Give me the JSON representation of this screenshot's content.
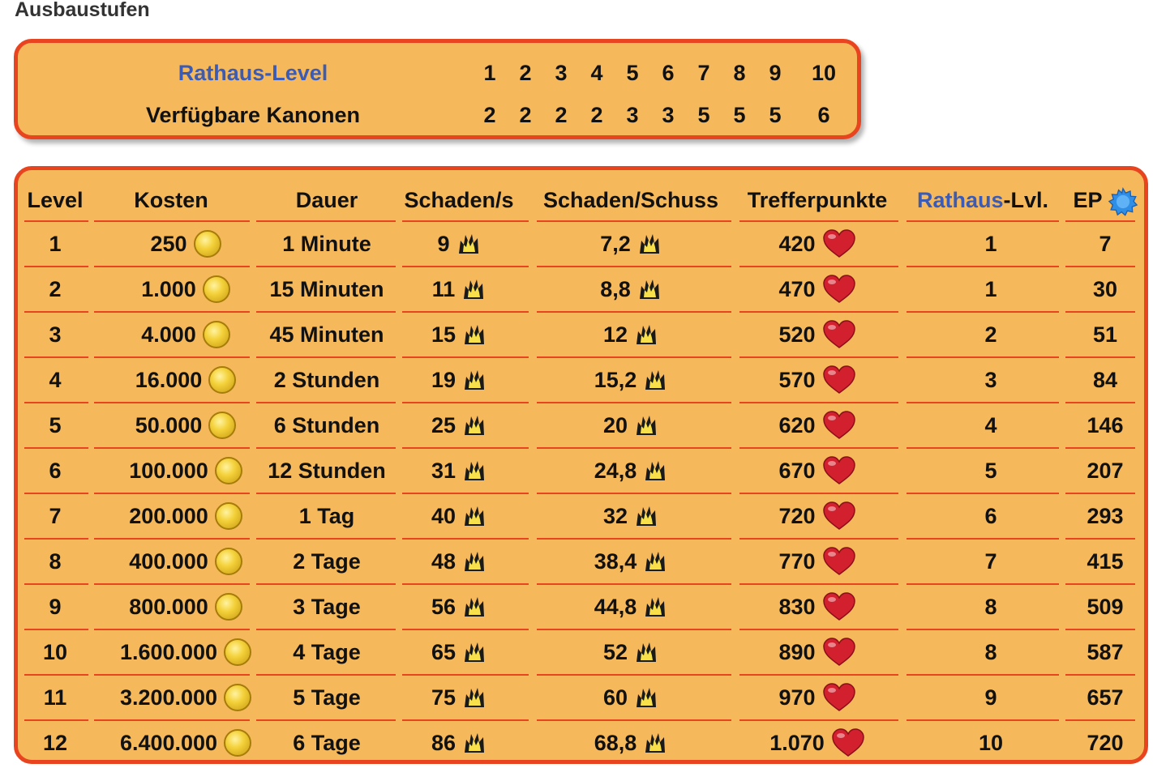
{
  "section_title": "Ausbaustufen",
  "summary": {
    "row1_label_a": "Rathaus-Level",
    "row1_values": [
      "1",
      "2",
      "3",
      "4",
      "5",
      "6",
      "7",
      "8",
      "9",
      "10"
    ],
    "row2_label": "Verfügbare Kanonen",
    "row2_values": [
      "2",
      "2",
      "2",
      "2",
      "3",
      "3",
      "5",
      "5",
      "5",
      "6"
    ]
  },
  "table": {
    "headers": {
      "level": "Level",
      "kosten": "Kosten",
      "dauer": "Dauer",
      "schaden_s": "Schaden/s",
      "schaden_schuss": "Schaden/Schuss",
      "trefferpunkte": "Trefferpunkte",
      "rathaus_a": "Rathaus",
      "rathaus_b": "-Lvl.",
      "ep": "EP"
    },
    "icons": {
      "kosten": "gold-coin-icon",
      "schaden": "damage-flame-icon",
      "trefferpunkte": "heart-icon",
      "ep": "experience-star-icon"
    },
    "colors": {
      "panel_background": "#f5b95c",
      "panel_border": "#e8441f",
      "link_blue": "#3b5bb5"
    },
    "rows": [
      {
        "level": "1",
        "kosten": "250",
        "dauer": "1 Minute",
        "schaden_s": "9",
        "schaden_schuss": "7,2",
        "trefferpunkte": "420",
        "rathaus": "1",
        "ep": "7"
      },
      {
        "level": "2",
        "kosten": "1.000",
        "dauer": "15 Minuten",
        "schaden_s": "11",
        "schaden_schuss": "8,8",
        "trefferpunkte": "470",
        "rathaus": "1",
        "ep": "30"
      },
      {
        "level": "3",
        "kosten": "4.000",
        "dauer": "45 Minuten",
        "schaden_s": "15",
        "schaden_schuss": "12",
        "trefferpunkte": "520",
        "rathaus": "2",
        "ep": "51"
      },
      {
        "level": "4",
        "kosten": "16.000",
        "dauer": "2 Stunden",
        "schaden_s": "19",
        "schaden_schuss": "15,2",
        "trefferpunkte": "570",
        "rathaus": "3",
        "ep": "84"
      },
      {
        "level": "5",
        "kosten": "50.000",
        "dauer": "6 Stunden",
        "schaden_s": "25",
        "schaden_schuss": "20",
        "trefferpunkte": "620",
        "rathaus": "4",
        "ep": "146"
      },
      {
        "level": "6",
        "kosten": "100.000",
        "dauer": "12 Stunden",
        "schaden_s": "31",
        "schaden_schuss": "24,8",
        "trefferpunkte": "670",
        "rathaus": "5",
        "ep": "207"
      },
      {
        "level": "7",
        "kosten": "200.000",
        "dauer": "1 Tag",
        "schaden_s": "40",
        "schaden_schuss": "32",
        "trefferpunkte": "720",
        "rathaus": "6",
        "ep": "293"
      },
      {
        "level": "8",
        "kosten": "400.000",
        "dauer": "2 Tage",
        "schaden_s": "48",
        "schaden_schuss": "38,4",
        "trefferpunkte": "770",
        "rathaus": "7",
        "ep": "415"
      },
      {
        "level": "9",
        "kosten": "800.000",
        "dauer": "3 Tage",
        "schaden_s": "56",
        "schaden_schuss": "44,8",
        "trefferpunkte": "830",
        "rathaus": "8",
        "ep": "509"
      },
      {
        "level": "10",
        "kosten": "1.600.000",
        "dauer": "4 Tage",
        "schaden_s": "65",
        "schaden_schuss": "52",
        "trefferpunkte": "890",
        "rathaus": "8",
        "ep": "587"
      },
      {
        "level": "11",
        "kosten": "3.200.000",
        "dauer": "5 Tage",
        "schaden_s": "75",
        "schaden_schuss": "60",
        "trefferpunkte": "970",
        "rathaus": "9",
        "ep": "657"
      },
      {
        "level": "12",
        "kosten": "6.400.000",
        "dauer": "6 Tage",
        "schaden_s": "86",
        "schaden_schuss": "68,8",
        "trefferpunkte": "1.070",
        "rathaus": "10",
        "ep": "720"
      }
    ]
  }
}
